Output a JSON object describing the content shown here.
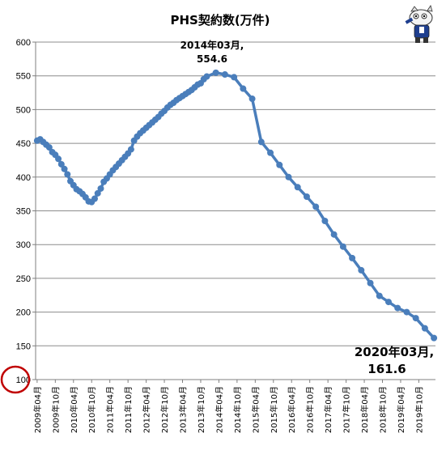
{
  "chart_data": {
    "type": "line",
    "title": "PHS契約数(万件)",
    "xlabel": "",
    "ylabel": "",
    "ylim": [
      100,
      600
    ],
    "yticks": [
      100,
      150,
      200,
      250,
      300,
      350,
      400,
      450,
      500,
      550,
      600
    ],
    "xtick_labels": [
      "2009年04月",
      "2009年10月",
      "2010年04月",
      "2010年10月",
      "2011年04月",
      "2011年10月",
      "2012年04月",
      "2012年10月",
      "2013年04月",
      "2013年10月",
      "2014年04月",
      "2014年10月",
      "2015年04月",
      "2015年10月",
      "2016年04月",
      "2016年10月",
      "2017年04月",
      "2017年10月",
      "2018年04月",
      "2018年10月",
      "2019年04月",
      "2019年10月"
    ],
    "series": [
      {
        "name": "",
        "color": "#4a7ebb",
        "x": [
          "2009-04",
          "2009-05",
          "2009-06",
          "2009-07",
          "2009-08",
          "2009-09",
          "2009-10",
          "2009-11",
          "2009-12",
          "2010-01",
          "2010-02",
          "2010-03",
          "2010-04",
          "2010-05",
          "2010-06",
          "2010-07",
          "2010-08",
          "2010-09",
          "2010-10",
          "2010-11",
          "2010-12",
          "2011-01",
          "2011-02",
          "2011-03",
          "2011-04",
          "2011-05",
          "2011-06",
          "2011-07",
          "2011-08",
          "2011-09",
          "2011-10",
          "2011-11",
          "2011-12",
          "2012-01",
          "2012-02",
          "2012-03",
          "2012-04",
          "2012-05",
          "2012-06",
          "2012-07",
          "2012-08",
          "2012-09",
          "2012-10",
          "2012-11",
          "2012-12",
          "2013-01",
          "2013-02",
          "2013-03",
          "2013-04",
          "2013-05",
          "2013-06",
          "2013-07",
          "2013-08",
          "2013-09",
          "2013-10",
          "2013-11",
          "2013-12",
          "2014-03",
          "2014-06",
          "2014-09",
          "2014-12",
          "2015-03",
          "2015-06",
          "2015-09",
          "2015-12",
          "2016-03",
          "2016-06",
          "2016-09",
          "2016-12",
          "2017-03",
          "2017-06",
          "2017-09",
          "2017-12",
          "2018-03",
          "2018-06",
          "2018-09",
          "2018-12",
          "2019-03",
          "2019-06",
          "2019-09",
          "2019-12",
          "2020-03"
        ],
        "values": [
          454,
          456,
          452,
          448,
          444,
          437,
          433,
          427,
          419,
          412,
          404,
          394,
          388,
          382,
          379,
          375,
          370,
          364,
          363,
          368,
          376,
          383,
          393,
          398,
          404,
          410,
          415,
          420,
          425,
          430,
          435,
          441,
          454,
          460,
          465,
          469,
          473,
          477,
          481,
          485,
          489,
          494,
          498,
          503,
          507,
          510,
          514,
          517,
          520,
          523,
          526,
          529,
          533,
          537,
          539,
          545,
          549,
          554.6,
          552,
          548,
          531,
          516,
          452,
          436,
          418,
          400,
          385,
          371,
          356,
          335,
          315,
          297,
          280,
          262,
          243,
          224,
          215,
          206,
          200,
          191,
          176,
          161.6
        ]
      }
    ],
    "annotations": [
      {
        "line1": "2014年03月,",
        "line2": "554.6"
      },
      {
        "line1": "2020年03月,",
        "line2": "161.6"
      }
    ],
    "highlight_color": "#c00000"
  }
}
